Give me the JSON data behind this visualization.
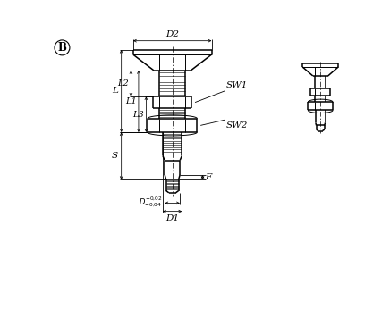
{
  "background_color": "#ffffff",
  "line_color": "#000000",
  "dim_labels": {
    "D2": "D2",
    "D1": "D1",
    "L": "L",
    "L1": "L1",
    "L2": "L2",
    "L3": "L3",
    "S": "S",
    "F": "F",
    "SW1": "SW1",
    "SW2": "SW2",
    "D_tol": "D"
  },
  "circle_label": "B"
}
